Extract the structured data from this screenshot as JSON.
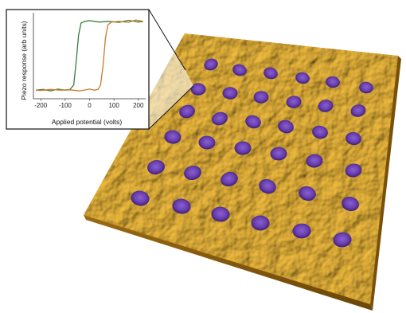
{
  "image": {
    "subject": "afm-surface-with-domains",
    "colors": {
      "surface_light": "#f0c040",
      "surface_mid": "#d49420",
      "surface_dark": "#8a5a08",
      "domain": "#6a3fb0",
      "domain_dark": "#3c1f78",
      "inset_border": "#111111"
    }
  },
  "inset": {
    "x_label": "Applied potential (volts)",
    "y_label": "Piezo response (arb units)",
    "x_ticks": [
      "-200",
      "-100",
      "0",
      "100",
      "200"
    ]
  },
  "chart_data": {
    "type": "line",
    "title": "",
    "xlabel": "Applied potential (volts)",
    "ylabel": "Piezo response (arb units)",
    "xlim": [
      -230,
      230
    ],
    "ylim": [
      -1.25,
      1.25
    ],
    "x_ticks": [
      -200,
      -100,
      0,
      100,
      200
    ],
    "grid": false,
    "series": [
      {
        "color": "#3a7d3a",
        "x": [
          -220,
          -190,
          -160,
          -130,
          -100,
          -80,
          -65,
          -55,
          -45,
          -35,
          -20,
          0,
          40,
          80,
          120,
          160,
          200,
          220
        ],
        "y": [
          -1.0,
          -0.98,
          -1.02,
          -0.97,
          -1.0,
          -0.98,
          -0.85,
          -0.2,
          0.6,
          0.95,
          1.0,
          1.02,
          0.98,
          1.0,
          0.97,
          1.03,
          0.98,
          1.0
        ]
      },
      {
        "color": "#c97b2a",
        "x": [
          220,
          190,
          160,
          120,
          90,
          75,
          65,
          55,
          45,
          35,
          20,
          0,
          -40,
          -80,
          -120,
          -160,
          -200,
          -220
        ],
        "y": [
          1.0,
          1.04,
          0.97,
          1.0,
          0.98,
          0.9,
          0.5,
          -0.3,
          -0.85,
          -0.98,
          -1.0,
          -0.97,
          -1.02,
          -0.99,
          -1.0,
          -0.98,
          -1.01,
          -1.0
        ]
      }
    ]
  }
}
